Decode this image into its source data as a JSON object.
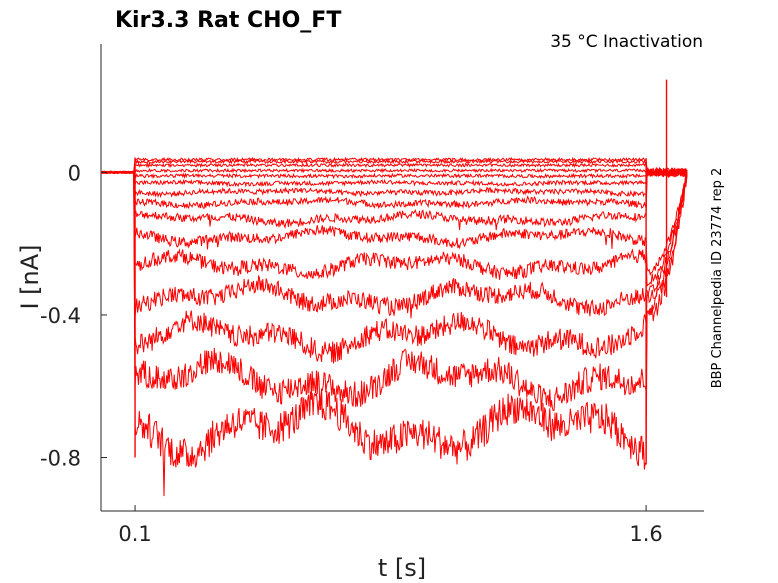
{
  "chart_data": {
    "type": "line",
    "title": "Kir3.3  Rat  CHO_FT",
    "subtitle": "35 °C  Inactivation",
    "side_label": "BBP Channelpedia ID 23774 rep 2",
    "xlabel": "t [s]",
    "ylabel": "I [nA]",
    "x_ticks": [
      "0.1",
      "1.6"
    ],
    "y_ticks": [
      "0",
      "-0.4",
      "-0.8"
    ],
    "x_tick_values": [
      0.1,
      1.6
    ],
    "y_tick_values": [
      0,
      -0.4,
      -0.8
    ],
    "xlim": [
      0.0,
      1.77
    ],
    "ylim": [
      -0.95,
      0.36
    ],
    "grid": false,
    "series_color": "#ff0000",
    "step_start_s": 0.1,
    "step_end_s": 1.6,
    "trace_levels_nA": [
      0.036,
      0.03,
      0.02,
      0.005,
      -0.01,
      -0.03,
      -0.055,
      -0.085,
      -0.13,
      -0.18,
      -0.26,
      -0.35,
      -0.46,
      -0.58,
      -0.72
    ]
  }
}
